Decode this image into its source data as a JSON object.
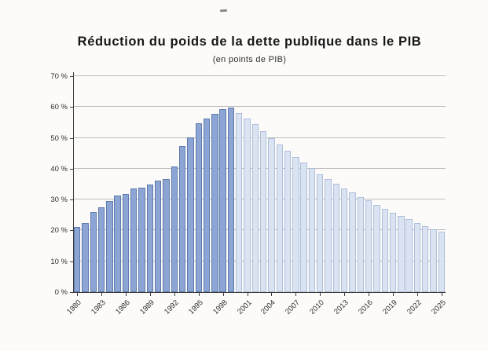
{
  "chart_data": {
    "type": "bar",
    "title": "Réduction du poids de la dette publique dans le PIB",
    "subtitle": "(en points de PIB)",
    "xlabel": "",
    "ylabel": "",
    "ylim": [
      0,
      70
    ],
    "ytick_step": 10,
    "ytick_labels": [
      "0 %",
      "10 %",
      "20 %",
      "30 %",
      "40 %",
      "50 %",
      "60 %",
      "70 %"
    ],
    "xtick_labels": [
      "1980",
      "1983",
      "1986",
      "1989",
      "1992",
      "1995",
      "1998",
      "2001",
      "2004",
      "2007",
      "2010",
      "2013",
      "2016",
      "2019",
      "2022",
      "2025"
    ],
    "grid": true,
    "legend": false,
    "categories": [
      1980,
      1981,
      1982,
      1983,
      1984,
      1985,
      1986,
      1987,
      1988,
      1989,
      1990,
      1991,
      1992,
      1993,
      1994,
      1995,
      1996,
      1997,
      1998,
      1999,
      2000,
      2001,
      2002,
      2003,
      2004,
      2005,
      2006,
      2007,
      2008,
      2009,
      2010,
      2011,
      2012,
      2013,
      2014,
      2015,
      2016,
      2017,
      2018,
      2019,
      2020,
      2021,
      2022,
      2023,
      2024,
      2025
    ],
    "values": [
      21.2,
      22.4,
      26.0,
      27.6,
      29.5,
      31.4,
      31.7,
      33.7,
      33.9,
      34.8,
      36.2,
      36.6,
      40.8,
      47.3,
      50.2,
      54.8,
      56.2,
      57.8,
      59.2,
      59.9,
      58.0,
      56.2,
      54.4,
      52.1,
      49.9,
      47.8,
      45.7,
      43.7,
      42.0,
      40.2,
      38.3,
      36.7,
      35.2,
      33.6,
      32.3,
      30.9,
      29.7,
      28.3,
      27.0,
      25.8,
      24.7,
      23.6,
      22.5,
      21.3,
      20.4,
      19.7
    ],
    "series_split": {
      "historical_through": 1999,
      "projection_from": 2000
    },
    "colors": {
      "historical_fill": "#8ca5d4",
      "historical_border": "#5e7bad",
      "projection_fill": "#dae3f2",
      "projection_border": "#aebfdc",
      "gridline": "#bdbdbd",
      "axis": "#3d3d3d"
    }
  }
}
